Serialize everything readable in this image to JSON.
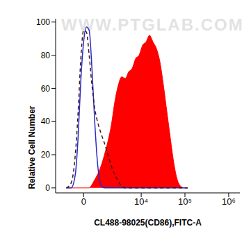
{
  "chart_data": {
    "type": "histogram",
    "x_label": "CL488-98025(CD86),FITC-A",
    "y_label": "Relative Cell Number",
    "annotations": [
      "WWW.PTGLAB.COM"
    ],
    "x": [
      -1010,
      -682,
      -438,
      -287,
      -142,
      0,
      142,
      287,
      438,
      598,
      772,
      1010,
      1287,
      1601,
      1972,
      2407,
      2924,
      3536,
      4270,
      5143,
      6191,
      7446,
      8945,
      10745,
      12900,
      15500,
      18600,
      22300,
      26800,
      32200,
      38600,
      46400,
      55700,
      66800,
      80100,
      96200,
      115400
    ],
    "series": [
      {
        "type": "area",
        "color": "#ff0000",
        "values": [
          0,
          0,
          0,
          0,
          0,
          0,
          0,
          0,
          2,
          5,
          8,
          13,
          20,
          28,
          38,
          52,
          62,
          67,
          66,
          70,
          72,
          78,
          80,
          86,
          88,
          92,
          88,
          84,
          76,
          62,
          46,
          30,
          15,
          5,
          1,
          0,
          0
        ]
      },
      {
        "type": "line",
        "color": "#2a2ac8",
        "line_style": "solid",
        "values": [
          0,
          0,
          8,
          30,
          65,
          88,
          97,
          95,
          72,
          40,
          15,
          2,
          0,
          0,
          0,
          0,
          0,
          0,
          0,
          0,
          0,
          0,
          0,
          0,
          0,
          0,
          0,
          0,
          0,
          0,
          0,
          0,
          0,
          0,
          0,
          0,
          0
        ]
      },
      {
        "type": "line",
        "color": "#3a1818",
        "line_style": "dashed",
        "values": [
          0,
          3,
          20,
          45,
          78,
          95,
          94,
          80,
          62,
          48,
          40,
          33,
          27,
          20,
          13,
          8,
          4,
          1,
          0,
          0,
          0,
          0,
          0,
          0,
          0,
          0,
          0,
          0,
          0,
          0,
          0,
          0,
          0,
          0,
          0,
          0,
          0
        ]
      }
    ],
    "xlim": [
      -2000,
      1800000
    ],
    "xticks": [
      0,
      {
        "value": 10000,
        "label": "10⁴"
      },
      {
        "value": 100000,
        "label": "10⁵"
      },
      {
        "value": 1000000,
        "label": "10⁶"
      }
    ],
    "ylim": [
      -3,
      102
    ],
    "yticks": [
      0,
      20,
      40,
      60,
      80,
      100
    ],
    "grid": false
  }
}
